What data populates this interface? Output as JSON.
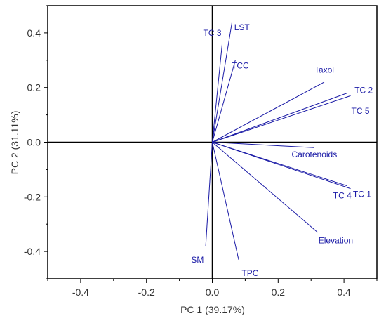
{
  "chart_data": {
    "type": "biplot",
    "xlabel": "PC 1 (39.17%)",
    "ylabel": "PC 2 (31.11%)",
    "xlim": [
      -0.5,
      0.5
    ],
    "ylim": [
      -0.5,
      0.5
    ],
    "x_ticks": [
      -0.4,
      -0.2,
      0.0,
      0.2,
      0.4
    ],
    "x_tick_labels": [
      "-0.4",
      "-0.2",
      "0.0",
      "0.2",
      "0.4"
    ],
    "y_ticks": [
      -0.4,
      -0.2,
      0.0,
      0.2,
      0.4
    ],
    "y_tick_labels": [
      "-0.4",
      "-0.2",
      "0.0",
      "0.2",
      "0.4"
    ],
    "grid": false,
    "vectors": [
      {
        "name": "TC 3",
        "x": 0.03,
        "y": 0.36,
        "label_offset": [
          -0.03,
          0.04
        ]
      },
      {
        "name": "LST",
        "x": 0.06,
        "y": 0.44,
        "label_offset": [
          0.03,
          -0.02
        ]
      },
      {
        "name": "TCC",
        "x": 0.07,
        "y": 0.3,
        "label_offset": [
          0.015,
          -0.02
        ]
      },
      {
        "name": "Taxol",
        "x": 0.34,
        "y": 0.22,
        "label_offset": [
          0.0,
          0.045
        ]
      },
      {
        "name": "TC 2",
        "x": 0.41,
        "y": 0.18,
        "label_offset": [
          0.05,
          0.01
        ]
      },
      {
        "name": "TC 5",
        "x": 0.42,
        "y": 0.17,
        "label_offset": [
          0.03,
          -0.055
        ]
      },
      {
        "name": "Carotenoids",
        "x": 0.31,
        "y": -0.02,
        "label_offset": [
          0.0,
          -0.025
        ]
      },
      {
        "name": "TC 1",
        "x": 0.41,
        "y": -0.16,
        "label_offset": [
          0.045,
          -0.03
        ]
      },
      {
        "name": "TC 4",
        "x": 0.42,
        "y": -0.17,
        "label_offset": [
          -0.025,
          -0.025
        ]
      },
      {
        "name": "Elevation",
        "x": 0.32,
        "y": -0.33,
        "label_offset": [
          0.055,
          -0.03
        ]
      },
      {
        "name": "SM",
        "x": -0.02,
        "y": -0.38,
        "label_offset": [
          -0.025,
          -0.05
        ]
      },
      {
        "name": "TPC",
        "x": 0.08,
        "y": -0.43,
        "label_offset": [
          0.035,
          -0.05
        ]
      }
    ],
    "colors": {
      "vector": "#1a1aa6",
      "label": "#1a1aa6",
      "axis": "#000000"
    }
  }
}
